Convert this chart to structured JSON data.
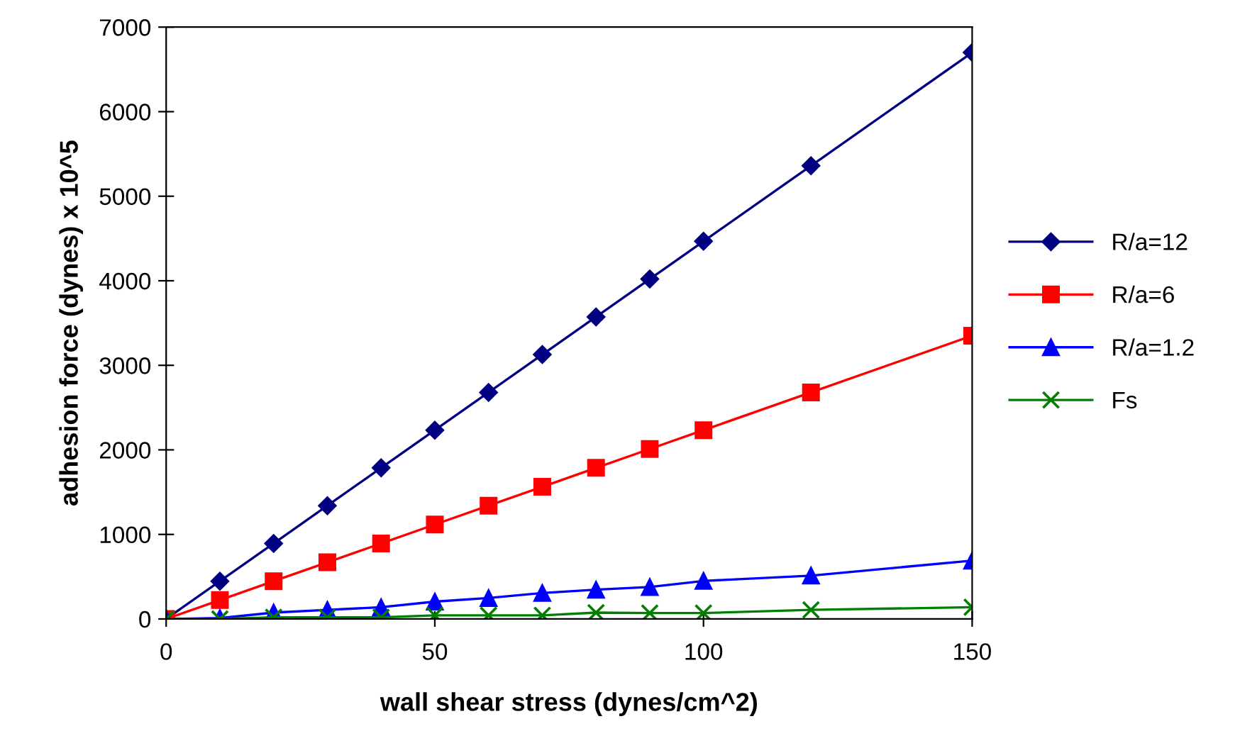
{
  "chart_data": {
    "type": "line",
    "xlabel": "wall shear stress (dynes/cm^2)",
    "ylabel": "adhesion force (dynes) x 10^5",
    "x": [
      0,
      10,
      20,
      30,
      40,
      50,
      60,
      70,
      80,
      90,
      100,
      120,
      150
    ],
    "series": [
      {
        "name": "R/a=12",
        "color": "#000080",
        "marker": "diamond",
        "values": [
          0,
          447,
          893,
          1340,
          1787,
          2233,
          2680,
          3127,
          3573,
          4020,
          4467,
          5360,
          6700
        ]
      },
      {
        "name": "R/a=6",
        "color": "#ff0000",
        "marker": "square",
        "values": [
          0,
          223,
          447,
          670,
          893,
          1117,
          1340,
          1563,
          1787,
          2010,
          2233,
          2680,
          3350
        ]
      },
      {
        "name": "R/a=1.2",
        "color": "#0000ff",
        "marker": "triangle",
        "values": [
          0,
          10,
          75,
          107,
          139,
          205,
          248,
          307,
          346,
          378,
          450,
          513,
          690
        ]
      },
      {
        "name": "Fs",
        "color": "#008000",
        "marker": "cross",
        "values": [
          0,
          0,
          20,
          20,
          20,
          42,
          42,
          42,
          75,
          70,
          70,
          107,
          139
        ]
      }
    ],
    "xlim": [
      0,
      150
    ],
    "xticks": [
      0,
      50,
      100,
      150
    ],
    "ylim": [
      0,
      7000
    ],
    "yticks": [
      0,
      1000,
      2000,
      3000,
      4000,
      5000,
      6000,
      7000
    ],
    "grid": false,
    "legend": "right",
    "line_style": "solid"
  }
}
